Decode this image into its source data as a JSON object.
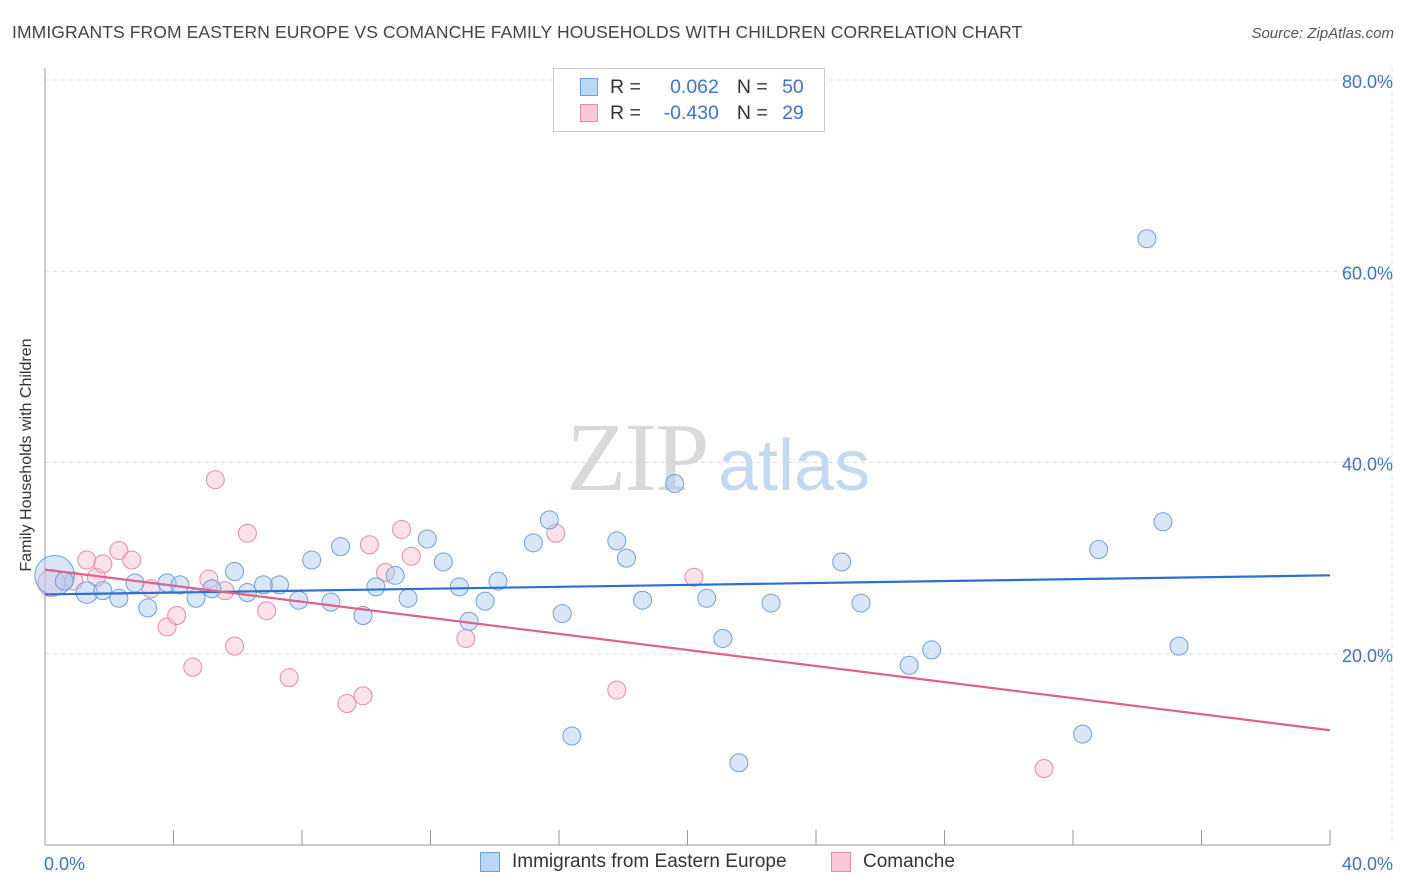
{
  "title": "IMMIGRANTS FROM EASTERN EUROPE VS COMANCHE FAMILY HOUSEHOLDS WITH CHILDREN CORRELATION CHART",
  "source": "Source: ZipAtlas.com",
  "watermark": {
    "zip": "ZIP",
    "atlas": "atlas"
  },
  "legend": {
    "r_label": "R =",
    "n_label": "N =",
    "rows": [
      {
        "r": "0.062",
        "n": "50"
      },
      {
        "r": "-0.430",
        "n": "29"
      }
    ]
  },
  "chart_data": {
    "type": "scatter",
    "title": "IMMIGRANTS FROM EASTERN EUROPE VS COMANCHE FAMILY HOUSEHOLDS WITH CHILDREN CORRELATION CHART",
    "xlabel": "",
    "ylabel": "Family Households with Children",
    "xlim": [
      0,
      40
    ],
    "ylim": [
      0,
      80
    ],
    "x_tick_labels": [
      "0.0%",
      "40.0%"
    ],
    "y_ticks": [
      20,
      40,
      60,
      80
    ],
    "y_tick_labels": [
      "20.0%",
      "40.0%",
      "60.0%",
      "80.0%"
    ],
    "grid": true,
    "legend_position": "bottom-center",
    "series": [
      {
        "name": "Immigrants from Eastern Europe",
        "color": "#a8c8f0",
        "stroke": "#6fa0de",
        "trend_color": "#2b6fcf",
        "trend": {
          "x": [
            0,
            40
          ],
          "y": [
            26.2,
            28.2
          ]
        },
        "points": [
          [
            0.3,
            28.2,
            2.2
          ],
          [
            0.6,
            27.6,
            1
          ],
          [
            1.3,
            26.4,
            1.2
          ],
          [
            1.8,
            26.6,
            1
          ],
          [
            2.3,
            25.8,
            1
          ],
          [
            2.8,
            27.4,
            1
          ],
          [
            3.2,
            24.8,
            1
          ],
          [
            3.8,
            27.4,
            1
          ],
          [
            4.2,
            27.2,
            1
          ],
          [
            4.7,
            25.8,
            1
          ],
          [
            5.2,
            26.8,
            1
          ],
          [
            5.9,
            28.6,
            1
          ],
          [
            6.3,
            26.4,
            1
          ],
          [
            6.8,
            27.2,
            1
          ],
          [
            7.3,
            27.2,
            1
          ],
          [
            7.9,
            25.6,
            1
          ],
          [
            8.3,
            29.8,
            1
          ],
          [
            8.9,
            25.4,
            1
          ],
          [
            9.2,
            31.2,
            1
          ],
          [
            9.9,
            24.0,
            1
          ],
          [
            10.3,
            27.0,
            1
          ],
          [
            10.9,
            28.2,
            1
          ],
          [
            11.3,
            25.8,
            1
          ],
          [
            11.9,
            32.0,
            1
          ],
          [
            12.4,
            29.6,
            1
          ],
          [
            12.9,
            27.0,
            1
          ],
          [
            13.2,
            23.4,
            1
          ],
          [
            13.7,
            25.5,
            1
          ],
          [
            14.1,
            27.6,
            1
          ],
          [
            15.2,
            31.6,
            1
          ],
          [
            15.7,
            34.0,
            1
          ],
          [
            16.1,
            24.2,
            1
          ],
          [
            16.4,
            11.4,
            1
          ],
          [
            17.8,
            31.8,
            1
          ],
          [
            18.1,
            30.0,
            1
          ],
          [
            18.6,
            25.6,
            1
          ],
          [
            19.6,
            37.8,
            1
          ],
          [
            20.6,
            25.8,
            1
          ],
          [
            21.1,
            21.6,
            1
          ],
          [
            21.6,
            8.6,
            1
          ],
          [
            22.6,
            25.3,
            1
          ],
          [
            24.8,
            29.6,
            1
          ],
          [
            25.4,
            25.3,
            1
          ],
          [
            26.9,
            18.8,
            1
          ],
          [
            27.6,
            20.4,
            1
          ],
          [
            32.3,
            11.6,
            1
          ],
          [
            32.8,
            30.9,
            1
          ],
          [
            34.3,
            63.4,
            1
          ],
          [
            34.8,
            33.8,
            1
          ],
          [
            35.3,
            20.8,
            1
          ]
        ]
      },
      {
        "name": "Comanche",
        "color": "#f7bcd0",
        "stroke": "#e88aab",
        "trend_color": "#e0608e",
        "trend": {
          "x": [
            0,
            40
          ],
          "y": [
            28.8,
            12.0
          ]
        },
        "points": [
          [
            0.2,
            27.4,
            1.5
          ],
          [
            0.9,
            27.6,
            1
          ],
          [
            1.3,
            29.8,
            1
          ],
          [
            1.6,
            28.0,
            1
          ],
          [
            1.8,
            29.4,
            1
          ],
          [
            2.3,
            30.8,
            1
          ],
          [
            2.7,
            29.8,
            1
          ],
          [
            3.3,
            26.8,
            1
          ],
          [
            3.8,
            22.8,
            1
          ],
          [
            4.1,
            24.0,
            1
          ],
          [
            4.6,
            18.6,
            1
          ],
          [
            5.1,
            27.8,
            1
          ],
          [
            5.3,
            38.2,
            1
          ],
          [
            5.6,
            26.6,
            1
          ],
          [
            5.9,
            20.8,
            1
          ],
          [
            6.3,
            32.6,
            1
          ],
          [
            6.9,
            24.5,
            1
          ],
          [
            7.6,
            17.5,
            1
          ],
          [
            9.4,
            14.8,
            1
          ],
          [
            9.9,
            15.6,
            1
          ],
          [
            10.1,
            31.4,
            1
          ],
          [
            10.6,
            28.5,
            1
          ],
          [
            11.1,
            33.0,
            1
          ],
          [
            11.4,
            30.2,
            1
          ],
          [
            13.1,
            21.6,
            1
          ],
          [
            15.9,
            32.6,
            1
          ],
          [
            17.8,
            16.2,
            1
          ],
          [
            20.2,
            28.0,
            1
          ],
          [
            31.1,
            8.0,
            1
          ]
        ]
      }
    ]
  }
}
